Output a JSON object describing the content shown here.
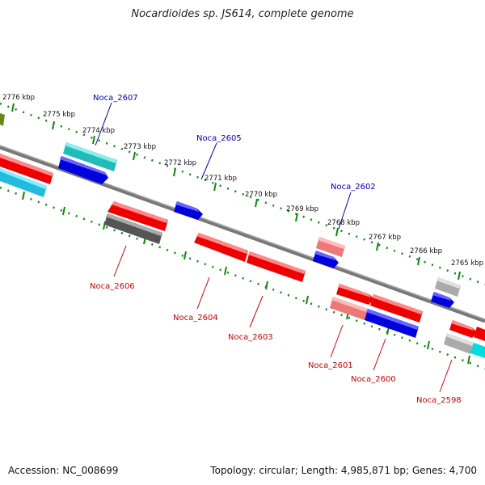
{
  "title": "Nocardioides sp. JS614, complete genome",
  "accession": "Accession: NC_008699",
  "topology": "Topology: circular; Length: 4,985,871 bp; Genes: 4,700",
  "kbp_ticks": [
    "2776 kbp",
    "2775 kbp",
    "2774 kbp",
    "2773 kbp",
    "2772 kbp",
    "2771 kbp",
    "2770 kbp",
    "2769 kbp",
    "2768 kbp",
    "2767 kbp",
    "2766 kbp",
    "2765 kbp"
  ],
  "gene_labels": [
    {
      "text": "Noca_2607",
      "color": "#0000aa"
    },
    {
      "text": "Noca_2605",
      "color": "#0000aa"
    },
    {
      "text": "Noca_2602",
      "color": "#0000aa"
    },
    {
      "text": "Noca_2606",
      "color": "#cc0000"
    },
    {
      "text": "Noca_2604",
      "color": "#cc0000"
    },
    {
      "text": "Noca_2603",
      "color": "#cc0000"
    },
    {
      "text": "Noca_2601",
      "color": "#cc0000"
    },
    {
      "text": "Noca_2600",
      "color": "#cc0000"
    },
    {
      "text": "Noca_2598",
      "color": "#cc0000"
    }
  ],
  "colors": {
    "red": "#ee0000",
    "blue": "#0000dd",
    "cyan": "#22cccc",
    "lightcyan": "#33ddee",
    "pink": "#ee7777",
    "gray": "#666666",
    "lightgray": "#bbbbbb",
    "olive": "#668811",
    "axis": "#888888",
    "tick": "#118811"
  }
}
